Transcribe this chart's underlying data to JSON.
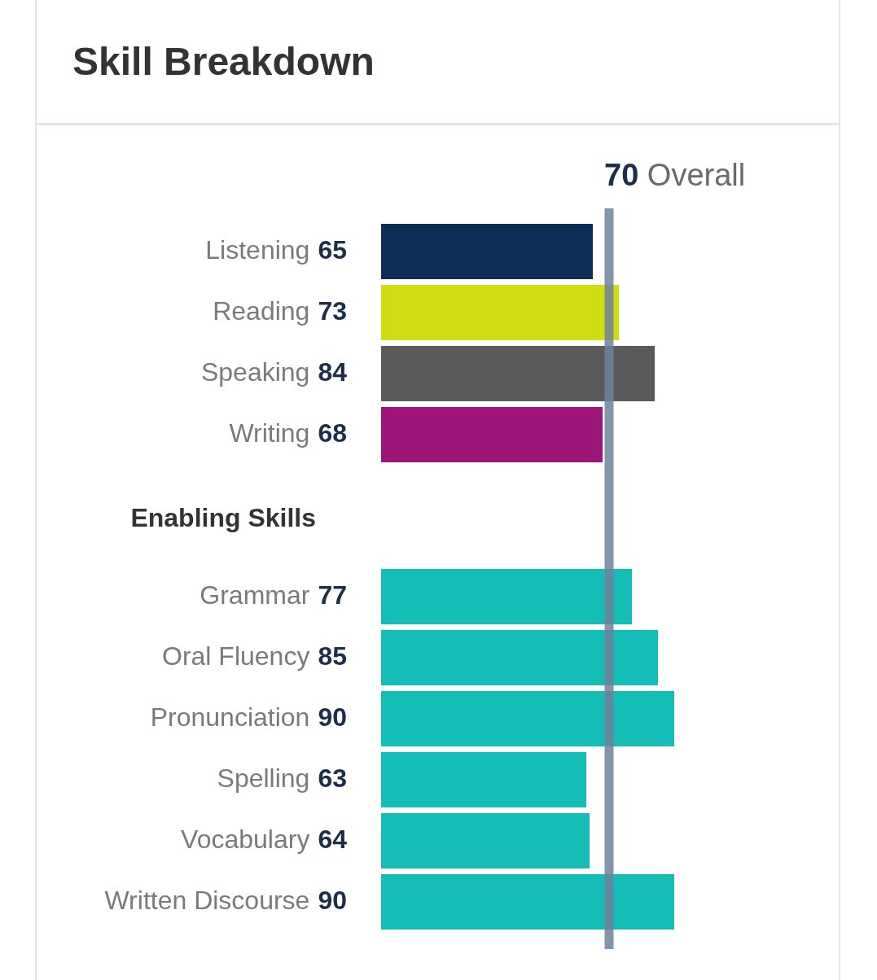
{
  "chart_data": [
    {
      "type": "bar",
      "orientation": "horizontal",
      "title": "Skill Breakdown",
      "categories": [
        "Listening",
        "Reading",
        "Speaking",
        "Writing"
      ],
      "values": [
        65,
        73,
        84,
        68
      ],
      "colors": [
        "#0e2d57",
        "#d0dc12",
        "#5a5a5a",
        "#9c1579"
      ],
      "tick_labels": false,
      "data_labels": true,
      "ref_lines": [
        {
          "axis": "x",
          "value": 70,
          "label": "70 Overall",
          "color": "#6f819b"
        }
      ]
    },
    {
      "type": "bar",
      "orientation": "horizontal",
      "title": "Enabling Skills",
      "categories": [
        "Grammar",
        "Oral Fluency",
        "Pronunciation",
        "Spelling",
        "Vocabulary",
        "Written Discourse"
      ],
      "values": [
        77,
        85,
        90,
        63,
        64,
        90
      ],
      "colors": [
        "#14bdb5",
        "#14bdb5",
        "#14bdb5",
        "#14bdb5",
        "#14bdb5",
        "#14bdb5"
      ],
      "tick_labels": false,
      "data_labels": true,
      "ref_lines": [
        {
          "axis": "x",
          "value": 70,
          "label": null,
          "color": "#6f819b"
        }
      ]
    }
  ]
}
